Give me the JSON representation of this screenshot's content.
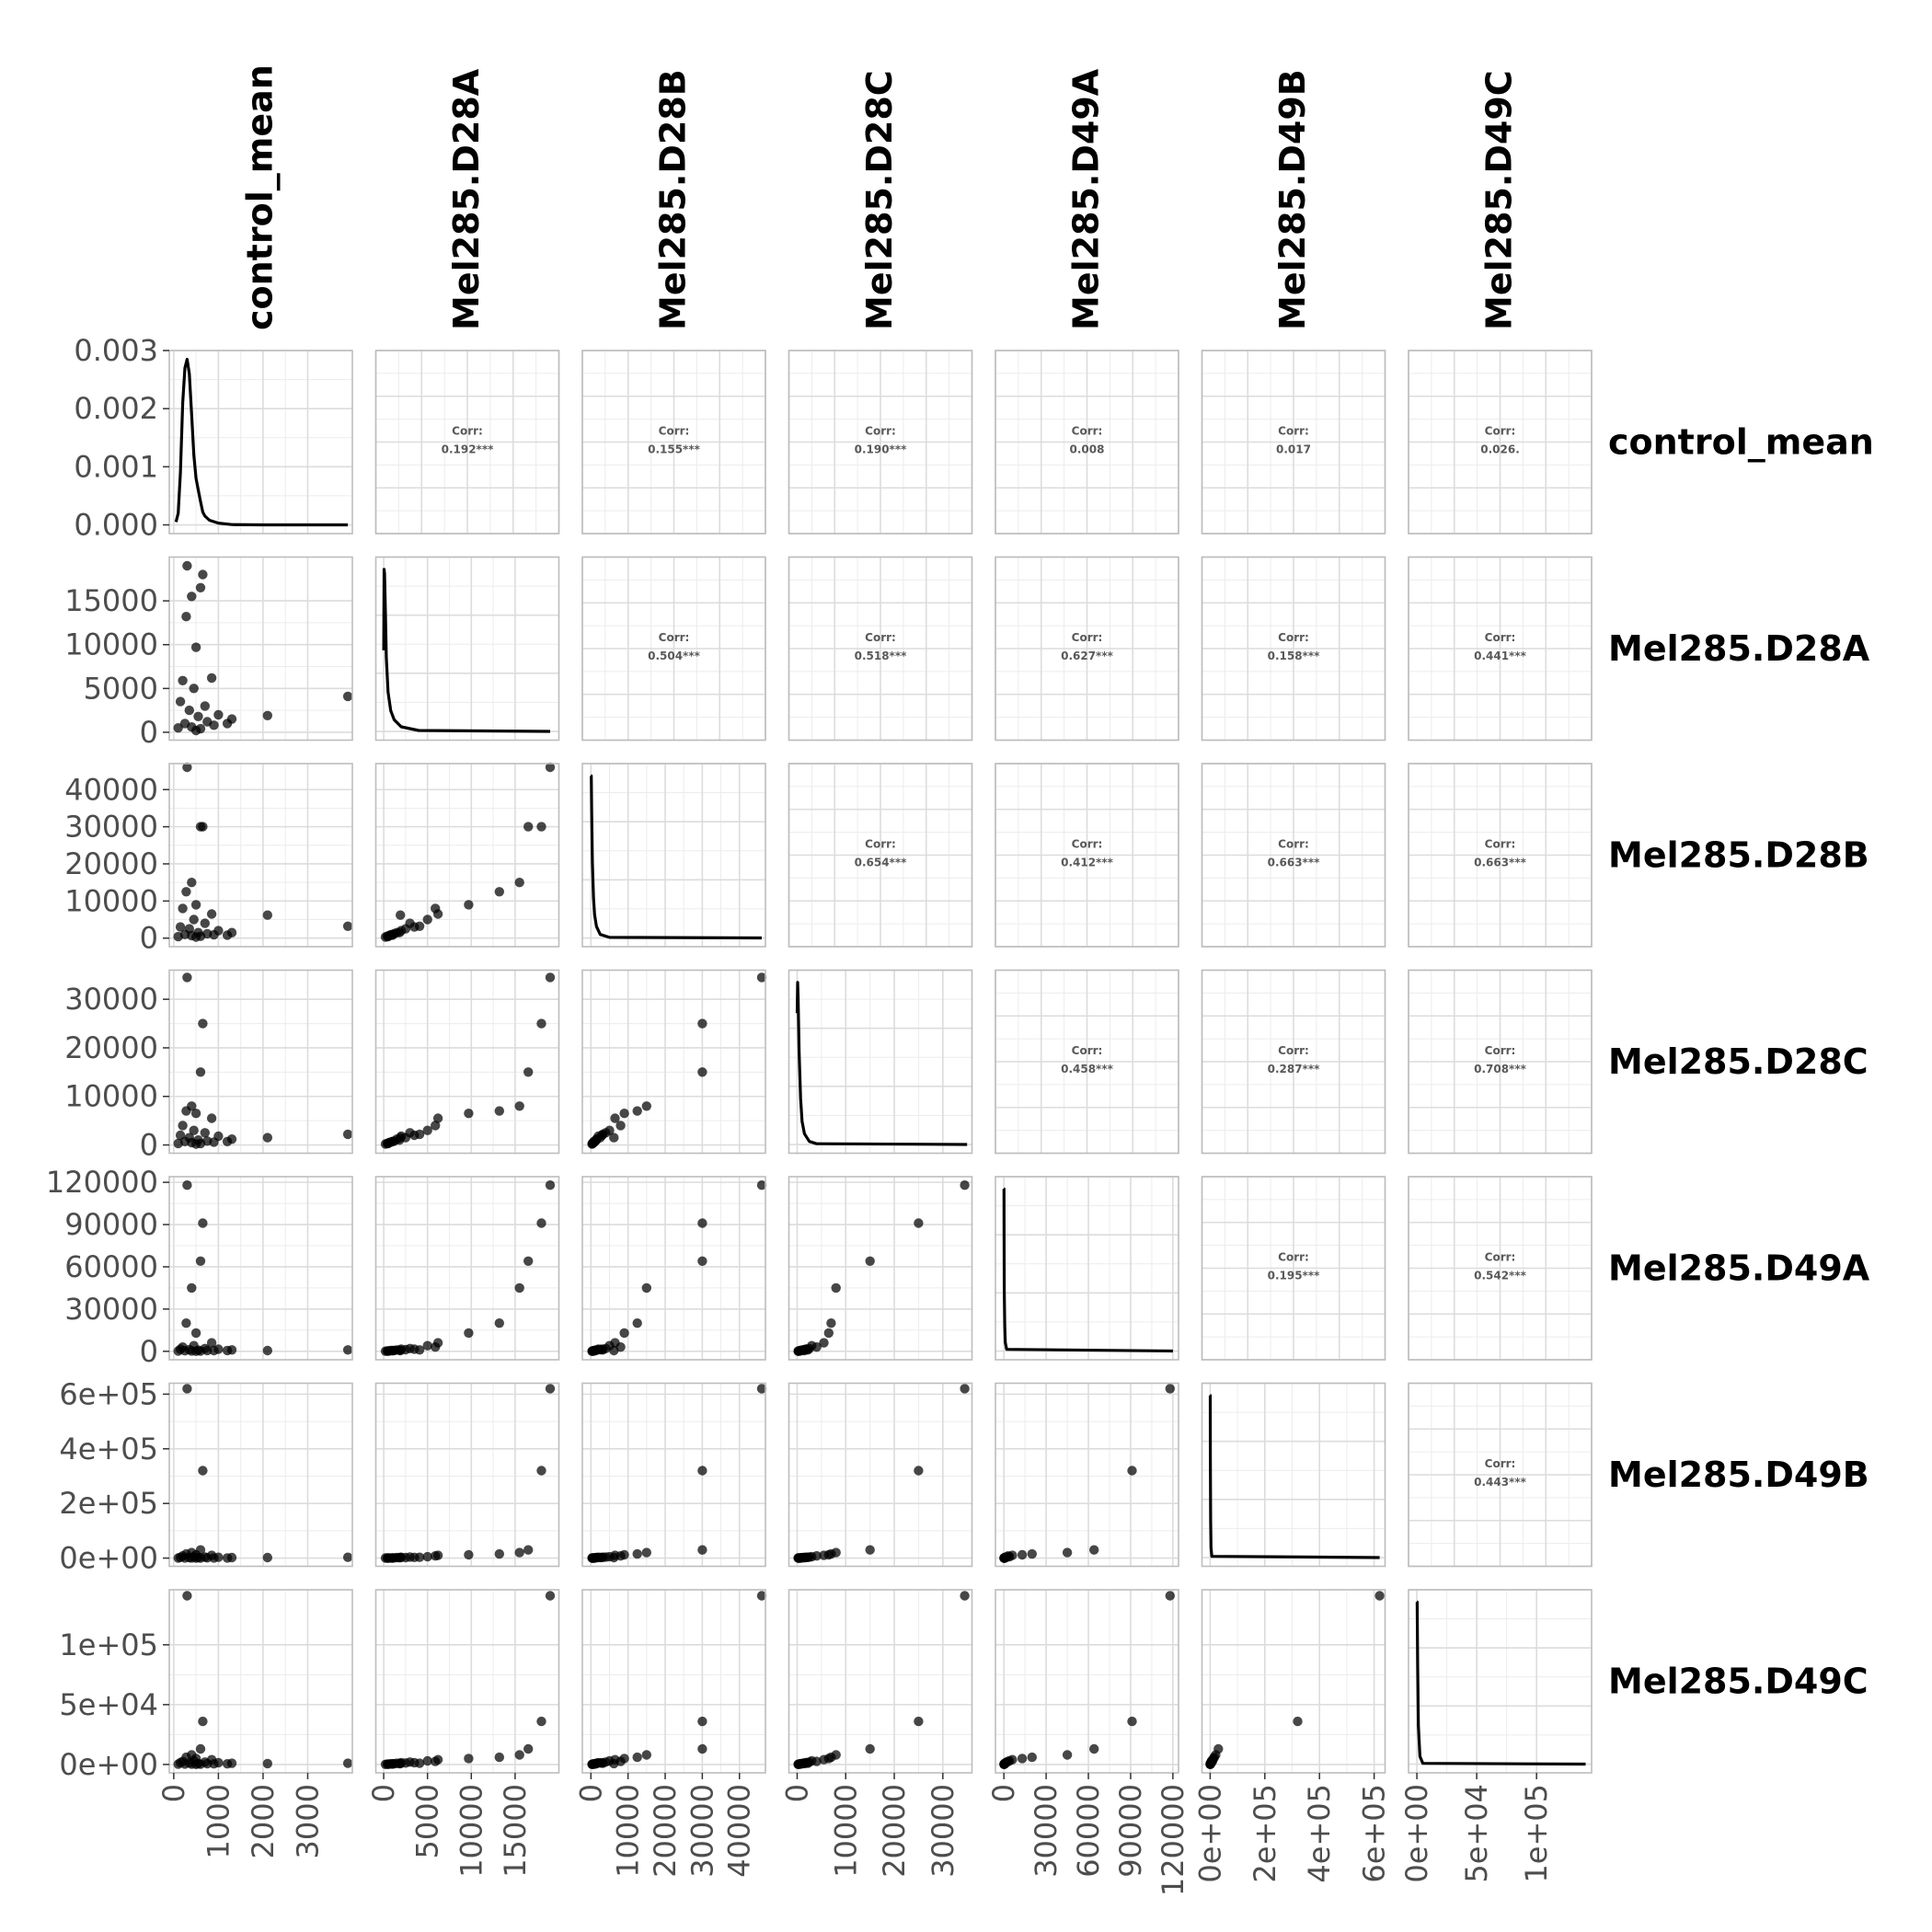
{
  "chart_data": {
    "type": "scatter",
    "variables": [
      "control_mean",
      "Mel285.D28A",
      "Mel285.D28B",
      "Mel285.D28C",
      "Mel285.D49A",
      "Mel285.D49B",
      "Mel285.D49C"
    ],
    "axes": [
      {
        "lim": [
          -100,
          4000
        ],
        "ticks": [
          0,
          1000,
          2000,
          3000
        ],
        "labels": [
          "0",
          "1000",
          "2000",
          "3000"
        ]
      },
      {
        "lim": [
          -900,
          20000
        ],
        "ticks": [
          0,
          5000,
          10000,
          15000
        ],
        "labels": [
          "0",
          "5000",
          "10000",
          "15000"
        ]
      },
      {
        "lim": [
          -2300,
          47000
        ],
        "ticks": [
          0,
          10000,
          20000,
          30000,
          40000
        ],
        "labels": [
          "0",
          "10000",
          "20000",
          "30000",
          "40000"
        ]
      },
      {
        "lim": [
          -1700,
          36000
        ],
        "ticks": [
          0,
          10000,
          20000,
          30000
        ],
        "labels": [
          "0",
          "10000",
          "20000",
          "30000"
        ]
      },
      {
        "lim": [
          -6000,
          124000
        ],
        "ticks": [
          0,
          30000,
          60000,
          90000,
          120000
        ],
        "labels": [
          "0",
          "30000",
          "60000",
          "90000",
          "120000"
        ]
      },
      {
        "lim": [
          -30000,
          640000
        ],
        "ticks": [
          0,
          200000,
          400000,
          600000
        ],
        "labels": [
          "0e+00",
          "2e+05",
          "4e+05",
          "6e+05"
        ]
      },
      {
        "lim": [
          -7000,
          146000
        ],
        "ticks": [
          0,
          50000,
          100000
        ],
        "labels": [
          "0e+00",
          "5e+04",
          "1e+05"
        ]
      }
    ],
    "density_axis": {
      "lim": [
        -0.00015,
        0.003
      ],
      "ticks": [
        0,
        0.001,
        0.002,
        0.003
      ],
      "labels": [
        "0.000",
        "0.001",
        "0.002",
        "0.003"
      ]
    },
    "correlations": [
      {
        "pair": [
          "control_mean",
          "Mel285.D28A"
        ],
        "label": "Corr:",
        "value": "0.192***"
      },
      {
        "pair": [
          "control_mean",
          "Mel285.D28B"
        ],
        "label": "Corr:",
        "value": "0.155***"
      },
      {
        "pair": [
          "control_mean",
          "Mel285.D28C"
        ],
        "label": "Corr:",
        "value": "0.190***"
      },
      {
        "pair": [
          "control_mean",
          "Mel285.D49A"
        ],
        "label": "Corr:",
        "value": "0.008"
      },
      {
        "pair": [
          "control_mean",
          "Mel285.D49B"
        ],
        "label": "Corr:",
        "value": "0.017"
      },
      {
        "pair": [
          "control_mean",
          "Mel285.D49C"
        ],
        "label": "Corr:",
        "value": "0.026."
      },
      {
        "pair": [
          "Mel285.D28A",
          "Mel285.D28B"
        ],
        "label": "Corr:",
        "value": "0.504***"
      },
      {
        "pair": [
          "Mel285.D28A",
          "Mel285.D28C"
        ],
        "label": "Corr:",
        "value": "0.518***"
      },
      {
        "pair": [
          "Mel285.D28A",
          "Mel285.D49A"
        ],
        "label": "Corr:",
        "value": "0.627***"
      },
      {
        "pair": [
          "Mel285.D28A",
          "Mel285.D49B"
        ],
        "label": "Corr:",
        "value": "0.158***"
      },
      {
        "pair": [
          "Mel285.D28A",
          "Mel285.D49C"
        ],
        "label": "Corr:",
        "value": "0.441***"
      },
      {
        "pair": [
          "Mel285.D28B",
          "Mel285.D28C"
        ],
        "label": "Corr:",
        "value": "0.654***"
      },
      {
        "pair": [
          "Mel285.D28B",
          "Mel285.D49A"
        ],
        "label": "Corr:",
        "value": "0.412***"
      },
      {
        "pair": [
          "Mel285.D28B",
          "Mel285.D49B"
        ],
        "label": "Corr:",
        "value": "0.663***"
      },
      {
        "pair": [
          "Mel285.D28B",
          "Mel285.D49C"
        ],
        "label": "Corr:",
        "value": "0.663***"
      },
      {
        "pair": [
          "Mel285.D28C",
          "Mel285.D49A"
        ],
        "label": "Corr:",
        "value": "0.458***"
      },
      {
        "pair": [
          "Mel285.D28C",
          "Mel285.D49B"
        ],
        "label": "Corr:",
        "value": "0.287***"
      },
      {
        "pair": [
          "Mel285.D28C",
          "Mel285.D49C"
        ],
        "label": "Corr:",
        "value": "0.708***"
      },
      {
        "pair": [
          "Mel285.D49A",
          "Mel285.D49B"
        ],
        "label": "Corr:",
        "value": "0.195***"
      },
      {
        "pair": [
          "Mel285.D49A",
          "Mel285.D49C"
        ],
        "label": "Corr:",
        "value": "0.542***"
      },
      {
        "pair": [
          "Mel285.D49B",
          "Mel285.D49C"
        ],
        "label": "Corr:",
        "value": "0.443***"
      }
    ],
    "densities": [
      {
        "variable": "control_mean",
        "x": [
          50,
          100,
          150,
          200,
          250,
          300,
          350,
          400,
          450,
          500,
          550,
          600,
          650,
          700,
          800,
          1000,
          1300,
          2000,
          3000,
          3900
        ],
        "y": [
          5e-05,
          0.0002,
          0.0009,
          0.0021,
          0.0027,
          0.00285,
          0.0026,
          0.0019,
          0.0012,
          0.0008,
          0.0006,
          0.0004,
          0.00022,
          0.00015,
          8e-05,
          3e-05,
          5e-06,
          0,
          0,
          0
        ]
      },
      {
        "variable": "Mel285.D28A",
        "x": [
          0,
          50,
          100,
          200,
          300,
          500,
          800,
          1200,
          2000,
          4000,
          19000
        ],
        "y": [
          0.00035,
          0.0007,
          0.00068,
          0.0005,
          0.00032,
          0.00017,
          9e-05,
          5e-05,
          2e-05,
          4e-06,
          0
        ]
      },
      {
        "variable": "Mel285.D28B",
        "x": [
          0,
          100,
          200,
          400,
          700,
          1000,
          1500,
          2500,
          5000,
          46000
        ],
        "y": [
          0.00028,
          0.00028,
          0.00022,
          0.00013,
          7e-05,
          4e-05,
          2e-05,
          6e-06,
          1e-06,
          0
        ]
      },
      {
        "variable": "Mel285.D28C",
        "x": [
          0,
          100,
          200,
          400,
          700,
          1000,
          1500,
          2500,
          4000,
          35000
        ],
        "y": [
          0.00017,
          0.00021,
          0.00019,
          0.00012,
          6e-05,
          3e-05,
          1.4e-05,
          4e-06,
          1e-06,
          0
        ]
      },
      {
        "variable": "Mel285.D49A",
        "x": [
          0,
          50,
          150,
          300,
          600,
          1000,
          2000,
          120000
        ],
        "y": [
          0.0019,
          0.0019,
          0.0014,
          0.0007,
          0.0003,
          0.0001,
          2e-05,
          0
        ]
      },
      {
        "variable": "Mel285.D49B",
        "x": [
          0,
          300,
          800,
          1500,
          3000,
          6000,
          620000
        ],
        "y": [
          0.0013,
          0.0013,
          0.0008,
          0.0003,
          8e-05,
          1e-05,
          0
        ]
      },
      {
        "variable": "Mel285.D49C",
        "x": [
          0,
          200,
          600,
          1200,
          2500,
          5000,
          141000
        ],
        "y": [
          0.0021,
          0.0021,
          0.0013,
          0.0005,
          0.0001,
          1e-05,
          0
        ]
      }
    ],
    "point_x_range_note": "",
    "points": [
      [
        300,
        19000,
        46000,
        34500,
        118000,
        620000,
        141000
      ],
      [
        650,
        18000,
        30000,
        25000,
        91000,
        320000,
        36000
      ],
      [
        600,
        16500,
        30000,
        15000,
        64000,
        30000,
        13000
      ],
      [
        400,
        15500,
        15000,
        8000,
        45000,
        20000,
        8000
      ],
      [
        280,
        13200,
        12500,
        7000,
        20000,
        15000,
        6000
      ],
      [
        500,
        9700,
        9000,
        6500,
        13000,
        12000,
        5000
      ],
      [
        3900,
        4100,
        3200,
        2200,
        1000,
        3000,
        1000
      ],
      [
        2100,
        1900,
        6200,
        1500,
        500,
        2000,
        800
      ],
      [
        850,
        6200,
        6500,
        5500,
        6000,
        10000,
        4000
      ],
      [
        200,
        5900,
        8000,
        4000,
        3000,
        8000,
        2500
      ],
      [
        450,
        5000,
        5000,
        3000,
        4000,
        5000,
        3000
      ],
      [
        700,
        3000,
        4000,
        2500,
        2000,
        4000,
        2000
      ],
      [
        1000,
        2000,
        2000,
        1800,
        1500,
        3000,
        1500
      ],
      [
        1300,
        1500,
        1500,
        1200,
        1000,
        2000,
        1000
      ],
      [
        150,
        3500,
        3000,
        2000,
        1500,
        2500,
        1500
      ],
      [
        350,
        2500,
        2500,
        1500,
        1200,
        2000,
        1200
      ],
      [
        550,
        1800,
        1500,
        1000,
        800,
        1500,
        800
      ],
      [
        750,
        1200,
        1200,
        800,
        600,
        1000,
        600
      ],
      [
        900,
        800,
        900,
        600,
        500,
        800,
        500
      ],
      [
        250,
        1000,
        1000,
        700,
        400,
        600,
        400
      ],
      [
        400,
        600,
        700,
        500,
        300,
        500,
        300
      ],
      [
        600,
        400,
        500,
        300,
        200,
        300,
        200
      ],
      [
        100,
        500,
        400,
        300,
        200,
        300,
        200
      ],
      [
        1200,
        1000,
        800,
        700,
        600,
        800,
        500
      ],
      [
        500,
        200,
        300,
        200,
        100,
        200,
        100
      ]
    ],
    "title": "",
    "xlabel": "",
    "ylabel": "",
    "grid": true
  }
}
